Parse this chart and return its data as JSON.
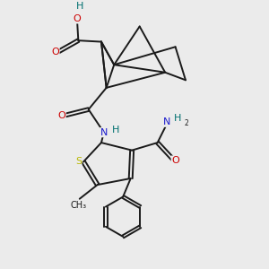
{
  "background_color": "#ebebeb",
  "bond_color": "#1a1a1a",
  "bond_width": 1.4,
  "atom_colors": {
    "C": "#1a1a1a",
    "O": "#cc0000",
    "N": "#1a1acc",
    "S": "#b8b800",
    "H": "#007070"
  },
  "figsize": [
    3.0,
    3.0
  ],
  "dpi": 100
}
